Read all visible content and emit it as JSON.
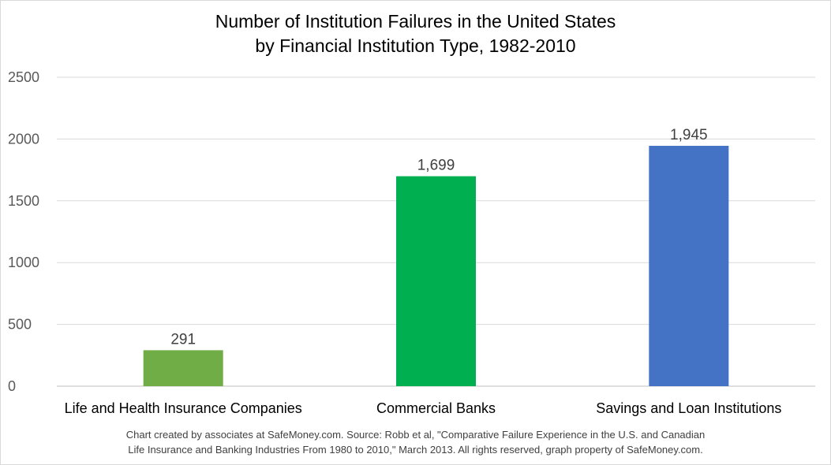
{
  "chart_data": {
    "type": "bar",
    "title_lines": [
      "Number of Institution Failures in the United States",
      "by Financial Institution Type, 1982-2010"
    ],
    "categories": [
      "Life and Health Insurance Companies",
      "Commercial Banks",
      "Savings and Loan Institutions"
    ],
    "values": [
      291,
      1699,
      1945
    ],
    "data_labels": [
      "291",
      "1,699",
      "1,945"
    ],
    "bar_colors": [
      "#70ad47",
      "#00b050",
      "#4472c4"
    ],
    "ylim": [
      0,
      2500
    ],
    "y_ticks": [
      0,
      500,
      1000,
      1500,
      2000,
      2500
    ],
    "grid": true,
    "legend": "none",
    "source_lines": [
      "Chart created by associates at SafeMoney.com. Source: Robb et al, \"Comparative Failure Experience in the U.S. and Canadian",
      "Life Insurance and Banking Industries From 1980 to 2010,\" March 2013. All rights reserved, graph property  of SafeMoney.com."
    ]
  }
}
